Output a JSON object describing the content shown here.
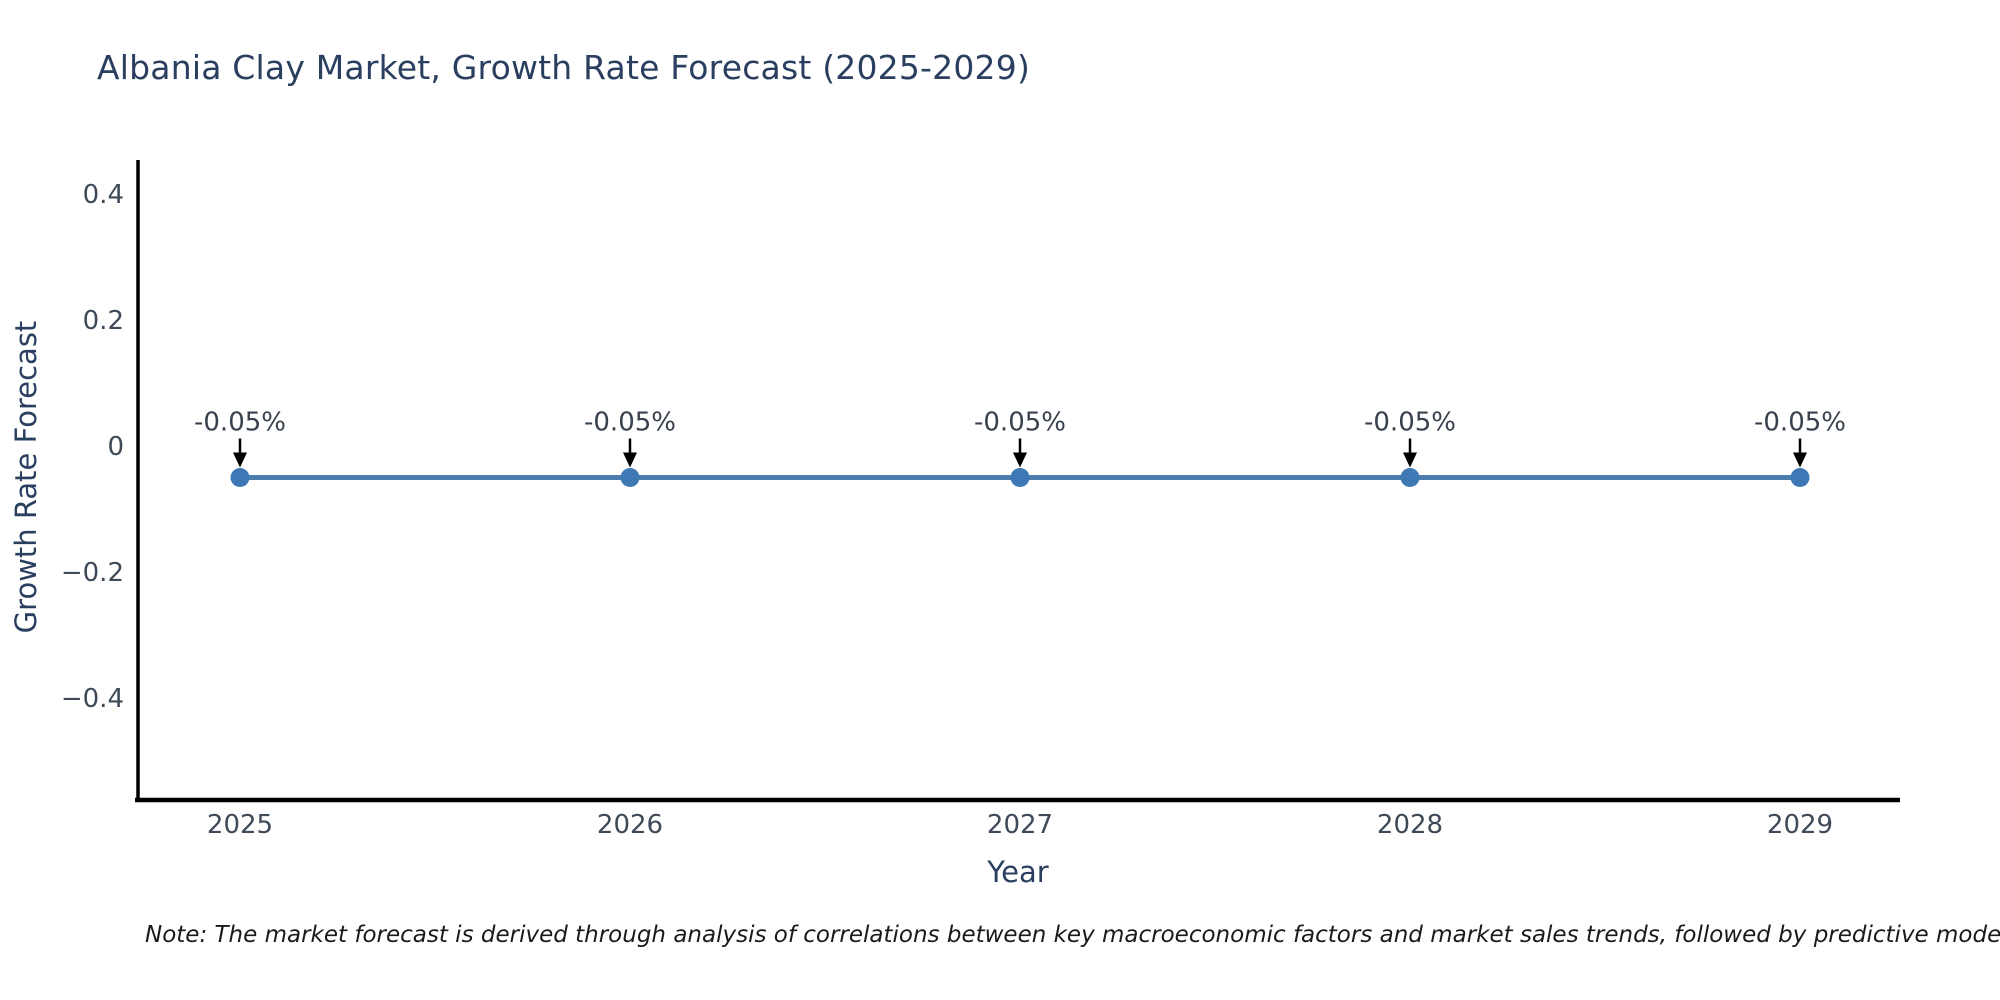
{
  "figure": {
    "background": "#ffffff",
    "note": "Note: The market forecast is derived through analysis of correlations between key macroeconomic factors and market sales trends, followed by predictive modeling to project future sa"
  },
  "chart_data": {
    "type": "line",
    "title": "Albania Clay Market, Growth Rate Forecast (2025-2029)",
    "xlabel": "Year",
    "ylabel": "Growth Rate Forecast",
    "x": [
      2025,
      2026,
      2027,
      2028,
      2029
    ],
    "xtick_labels": [
      "2025",
      "2026",
      "2027",
      "2028",
      "2029"
    ],
    "series": [
      {
        "name": "Growth Rate Forecast",
        "values": [
          -0.05,
          -0.05,
          -0.05,
          -0.05,
          -0.05
        ]
      }
    ],
    "point_labels": [
      "-0.05%",
      "-0.05%",
      "-0.05%",
      "-0.05%",
      "-0.05%"
    ],
    "ytick_values": [
      0.4,
      0.2,
      0,
      -0.2,
      -0.4
    ],
    "ytick_labels": [
      "0.4",
      "0.2",
      "0",
      "−0.2",
      "−0.4"
    ],
    "ylim": [
      -0.57,
      0.45
    ],
    "grid": false,
    "legend_position": "none",
    "annotation_style": "down-arrow-to-point",
    "colors": {
      "line": "#4a7dab",
      "marker": "#3f79b5",
      "axis_line": "#000000",
      "title_text": "#2a3f5f",
      "axis_title_text": "#2a3f5f",
      "tick_text": "#3f4a59",
      "annotation_text": "#38414e",
      "arrow": "#000000",
      "note_text": "#1a1a1a"
    }
  }
}
